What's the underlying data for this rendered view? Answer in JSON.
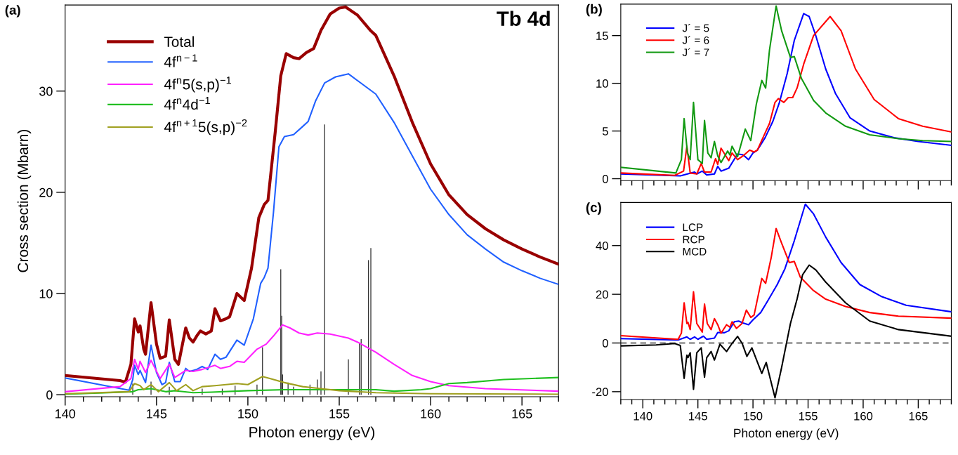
{
  "chart_data": [
    {
      "type": "line",
      "title": "(a)",
      "xlabel": "Photon energy (eV)",
      "ylabel": "Cross section (Mbarn)",
      "annotations": [
        "Tb 4d"
      ],
      "xlim": [
        140,
        167
      ],
      "ylim": [
        -0.2,
        38.5
      ],
      "xticks": [
        140,
        {
          "value": 141,
          "label": null
        },
        {
          "value": 142,
          "label": null
        },
        {
          "value": 143,
          "label": null
        },
        {
          "value": 144,
          "label": null
        },
        145,
        {
          "value": 146,
          "label": null
        },
        {
          "value": 147,
          "label": null
        },
        {
          "value": 148,
          "label": null
        },
        {
          "value": 149,
          "label": null
        },
        150,
        {
          "value": 151,
          "label": null
        },
        {
          "value": 152,
          "label": null
        },
        {
          "value": 153,
          "label": null
        },
        {
          "value": 154,
          "label": null
        },
        155,
        {
          "value": 156,
          "label": null
        },
        {
          "value": 157,
          "label": null
        },
        {
          "value": 158,
          "label": null
        },
        {
          "value": 159,
          "label": null
        },
        160,
        {
          "value": 161,
          "label": null
        },
        {
          "value": 162,
          "label": null
        },
        {
          "value": 163,
          "label": null
        },
        {
          "value": 164,
          "label": null
        },
        165,
        {
          "value": 166,
          "label": null
        },
        {
          "value": 167,
          "label": null
        }
      ],
      "yticks": [
        0,
        10,
        20,
        30
      ],
      "legend": "top left",
      "series": [
        {
          "type": "bar",
          "color": "#333333",
          "x": [
            143.7,
            144.7,
            145.7,
            147.5,
            148.6,
            149.3,
            150.5,
            150.8,
            151.8,
            151.85,
            151.9,
            152.2,
            152.5,
            153.4,
            153.8,
            154.0,
            154.2,
            155.5,
            156.1,
            156.2,
            156.6,
            156.73
          ],
          "values": [
            1.1,
            1.3,
            0.8,
            0.6,
            0.6,
            0.9,
            1.0,
            4.7,
            12.4,
            7.8,
            2.0,
            1.2,
            0.8,
            1.0,
            1.5,
            2.3,
            26.7,
            3.5,
            5.1,
            5.5,
            13.3,
            14.5
          ]
        },
        {
          "name": "Total",
          "color": "#990000",
          "x": [
            140,
            143,
            143.3,
            143.6,
            143.8,
            144.0,
            144.1,
            144.3,
            144.4,
            144.7,
            145.0,
            145.2,
            145.5,
            145.7,
            146.0,
            146.2,
            146.6,
            146.8,
            147.0,
            147.2,
            147.4,
            147.7,
            148.0,
            148.2,
            148.5,
            148.8,
            149.0,
            149.4,
            149.8,
            150.2,
            150.6,
            150.9,
            151.1,
            151.5,
            151.8,
            152.1,
            152.5,
            152.8,
            153.2,
            153.6,
            154.0,
            154.5,
            155.0,
            155.35,
            156.0,
            156.7,
            157,
            158,
            159,
            160,
            161,
            162,
            163,
            164,
            165,
            166,
            167
          ],
          "values": [
            1.9,
            1.4,
            1.25,
            3.0,
            7.5,
            6.2,
            6.8,
            4.5,
            4.0,
            9.1,
            5.0,
            3.6,
            3.8,
            7.4,
            3.5,
            3.0,
            6.6,
            5.6,
            5.2,
            5.8,
            6.3,
            6.0,
            6.3,
            8.5,
            7.3,
            7.5,
            7.7,
            10.0,
            9.3,
            12.5,
            17.5,
            18.8,
            19.2,
            26,
            31.5,
            33.7,
            33.3,
            33.2,
            33.8,
            34.2,
            36.0,
            37.6,
            38.2,
            38.3,
            37.5,
            36.0,
            35.5,
            31.5,
            26.9,
            22.8,
            19.75,
            17.8,
            16.4,
            15.3,
            14.4,
            13.6,
            12.9
          ]
        },
        {
          "name": "4f$^{n−1}$",
          "color": "#2060ff",
          "x": [
            140,
            143.5,
            143.7,
            143.8,
            144.0,
            144.1,
            144.4,
            144.7,
            145.0,
            145.3,
            145.5,
            145.7,
            146.0,
            146.3,
            146.6,
            146.8,
            147.2,
            147.5,
            147.8,
            148.2,
            148.5,
            148.8,
            149.4,
            149.8,
            150.3,
            150.7,
            150.9,
            151.1,
            151.4,
            151.7,
            152.0,
            152.5,
            153.0,
            153.3,
            153.7,
            154.2,
            154.8,
            155.5,
            157,
            158,
            159,
            160,
            161,
            162,
            163,
            164,
            165,
            166,
            167
          ],
          "values": [
            1.65,
            0.45,
            1.5,
            2.9,
            2.0,
            2.4,
            1.2,
            4.9,
            2.2,
            1.0,
            1.2,
            3.2,
            1.3,
            1.3,
            2.6,
            2.3,
            2.5,
            2.8,
            2.5,
            4.0,
            3.5,
            3.7,
            5.4,
            4.9,
            7.5,
            11,
            11.6,
            12.5,
            18,
            24.5,
            25.5,
            25.7,
            26.5,
            27,
            29,
            30.8,
            31.4,
            31.7,
            29.7,
            26.9,
            23.6,
            20.3,
            17.8,
            15.8,
            14.4,
            13.1,
            12.25,
            11.5,
            10.9
          ]
        },
        {
          "name": "4f$^{n}$5(s,p)$^{−1}$",
          "color": "#ff20ff",
          "x": [
            140,
            143,
            143.6,
            143.8,
            144.0,
            144.1,
            144.4,
            144.7,
            145.2,
            145.7,
            146.0,
            146.6,
            147,
            147.5,
            148.2,
            148.5,
            149,
            149.4,
            149.8,
            150.5,
            151,
            151.4,
            151.9,
            152.3,
            152.8,
            153.3,
            153.8,
            154.5,
            155.5,
            156,
            157,
            158,
            159,
            160,
            161,
            163,
            167
          ],
          "values": [
            0.3,
            0.8,
            1.6,
            3.5,
            2.5,
            3.3,
            2.2,
            3.4,
            1.6,
            3.0,
            1.7,
            2.4,
            2.3,
            2.5,
            2.9,
            2.6,
            2.8,
            3.3,
            3.2,
            4.5,
            5.0,
            5.8,
            6.9,
            6.6,
            6.1,
            5.9,
            6.1,
            6.0,
            5.6,
            5.2,
            4.2,
            3.0,
            1.9,
            1.3,
            0.9,
            0.6,
            0.35
          ]
        },
        {
          "name": "4f$^{n}$4d$^{−1}$",
          "color": "#20c020",
          "x": [
            140,
            143.7,
            144,
            144.7,
            145.5,
            146,
            147,
            148,
            150,
            152,
            155,
            157,
            158,
            159.5,
            160,
            161,
            162,
            164,
            167
          ],
          "values": [
            0.05,
            0.3,
            0.5,
            0.6,
            0.3,
            0.4,
            0.2,
            0.25,
            0.4,
            0.5,
            0.5,
            0.5,
            0.35,
            0.5,
            0.6,
            1.1,
            1.2,
            1.5,
            1.7
          ]
        },
        {
          "name": "4f$^{n+1}$5(s,p)$^{−2}$",
          "color": "#a0a020",
          "x": [
            140,
            143.5,
            143.8,
            144.1,
            144.3,
            144.7,
            145.1,
            145.7,
            146.1,
            146.6,
            147.0,
            147.5,
            148.2,
            148.8,
            149.4,
            150.0,
            150.8,
            151.2,
            152,
            153,
            154,
            155,
            157,
            160,
            167
          ],
          "values": [
            0.1,
            0.3,
            1.1,
            0.9,
            0.5,
            1.0,
            0.3,
            1.2,
            0.4,
            1.0,
            0.4,
            0.8,
            0.9,
            1.0,
            1.1,
            1.0,
            1.8,
            1.6,
            1.2,
            0.8,
            0.6,
            0.4,
            0.2,
            0.1,
            0.05
          ]
        }
      ]
    },
    {
      "type": "line",
      "title": "(b)",
      "xlim": [
        138,
        168
      ],
      "ylim": [
        -0.2,
        18.3
      ],
      "tick_labels": "y",
      "xticks": [
        {
          "value": 138,
          "label": null
        },
        {
          "value": 139,
          "label": null
        },
        140,
        {
          "value": 141,
          "label": null
        },
        {
          "value": 142,
          "label": null
        },
        {
          "value": 143,
          "label": null
        },
        {
          "value": 144,
          "label": null
        },
        145,
        {
          "value": 146,
          "label": null
        },
        {
          "value": 147,
          "label": null
        },
        {
          "value": 148,
          "label": null
        },
        {
          "value": 149,
          "label": null
        },
        150,
        {
          "value": 151,
          "label": null
        },
        {
          "value": 152,
          "label": null
        },
        {
          "value": 153,
          "label": null
        },
        {
          "value": 154,
          "label": null
        },
        155,
        {
          "value": 156,
          "label": null
        },
        {
          "value": 157,
          "label": null
        },
        {
          "value": 158,
          "label": null
        },
        {
          "value": 159,
          "label": null
        },
        160,
        {
          "value": 161,
          "label": null
        },
        {
          "value": 162,
          "label": null
        },
        {
          "value": 163,
          "label": null
        },
        {
          "value": 164,
          "label": null
        },
        165,
        {
          "value": 166,
          "label": null
        },
        {
          "value": 167,
          "label": null
        },
        {
          "value": 168,
          "label": null
        }
      ],
      "yticks": [
        0,
        5,
        10,
        15
      ],
      "legend": "top left",
      "series": [
        {
          "name": "J´ = 5",
          "color": "#0000ff",
          "x": [
            138,
            143.4,
            144.7,
            144.9,
            145.4,
            145.8,
            146.5,
            146.8,
            147.1,
            147.8,
            148.6,
            149.1,
            149.6,
            150,
            150.4,
            151.1,
            151.8,
            152.4,
            153.1,
            153.75,
            154.6,
            155.1,
            155.7,
            156.6,
            157.5,
            158.8,
            160.6,
            162.8,
            165,
            168
          ],
          "values": [
            0.5,
            0.3,
            0.7,
            0.5,
            0.8,
            0.4,
            0.5,
            1.3,
            0.8,
            1.1,
            2.6,
            2.5,
            2.0,
            2.7,
            3.0,
            4.3,
            6.0,
            8,
            11,
            14.5,
            17.3,
            17.0,
            15.0,
            11.5,
            8.9,
            6.4,
            5.0,
            4.3,
            3.9,
            3.5
          ]
        },
        {
          "name": "J´ = 6",
          "color": "#ff0000",
          "x": [
            138,
            142.9,
            143.7,
            144.0,
            144.3,
            144.9,
            145.3,
            145.6,
            146.2,
            146.6,
            146.8,
            147.1,
            147.8,
            148.1,
            148.6,
            149.1,
            149.7,
            150.1,
            150.4,
            151.1,
            151.5,
            152,
            152.3,
            152.8,
            153.2,
            153.6,
            154,
            154.6,
            155.5,
            157,
            158,
            159.3,
            161,
            163.2,
            165.4,
            168
          ],
          "values": [
            0.6,
            0.35,
            0.8,
            3.4,
            0.6,
            0.5,
            1.6,
            0.7,
            0.7,
            2.1,
            1.5,
            3.2,
            1.9,
            2.7,
            2.0,
            2.4,
            3.0,
            2.8,
            3.0,
            4.8,
            5.8,
            8.0,
            8.4,
            8.0,
            8.5,
            8.5,
            9.5,
            12,
            15,
            17.0,
            15.5,
            11.5,
            8.3,
            6.3,
            5.5,
            4.9
          ]
        },
        {
          "name": "J´ = 7",
          "color": "#119911",
          "x": [
            138,
            143,
            143.5,
            143.75,
            144.05,
            144.3,
            144.6,
            145.0,
            145.4,
            145.6,
            145.9,
            146.2,
            146.5,
            146.8,
            147.1,
            147.7,
            147.9,
            148.1,
            148.6,
            149.3,
            149.8,
            150.3,
            150.8,
            151.15,
            151.5,
            152.1,
            152.6,
            153.4,
            153.75,
            154.4,
            155.5,
            156.6,
            158.4,
            160.6,
            163.2,
            165.4,
            168
          ],
          "values": [
            1.2,
            0.6,
            2,
            6.3,
            2.7,
            2.0,
            8.0,
            2.0,
            1.6,
            6.1,
            2.7,
            2.2,
            3.9,
            2.4,
            1.7,
            2.9,
            2.5,
            3.4,
            2.3,
            5.2,
            4.0,
            7.8,
            10.3,
            9.5,
            13.5,
            18.1,
            15.5,
            12.7,
            12.8,
            10.5,
            8.2,
            6.9,
            5.5,
            4.6,
            4.2,
            4.0,
            3.9
          ]
        }
      ]
    },
    {
      "type": "line",
      "title": "(c)",
      "xlabel": "Photon energy (eV)",
      "xlim": [
        138,
        168
      ],
      "ylim": [
        -23.2,
        57.7
      ],
      "xticks": [
        {
          "value": 138,
          "label": null
        },
        {
          "value": 139,
          "label": null
        },
        140,
        {
          "value": 141,
          "label": null
        },
        {
          "value": 142,
          "label": null
        },
        {
          "value": 143,
          "label": null
        },
        {
          "value": 144,
          "label": null
        },
        145,
        {
          "value": 146,
          "label": null
        },
        {
          "value": 147,
          "label": null
        },
        {
          "value": 148,
          "label": null
        },
        {
          "value": 149,
          "label": null
        },
        150,
        {
          "value": 151,
          "label": null
        },
        {
          "value": 152,
          "label": null
        },
        {
          "value": 153,
          "label": null
        },
        {
          "value": 154,
          "label": null
        },
        155,
        {
          "value": 156,
          "label": null
        },
        {
          "value": 157,
          "label": null
        },
        {
          "value": 158,
          "label": null
        },
        {
          "value": 159,
          "label": null
        },
        160,
        {
          "value": 161,
          "label": null
        },
        {
          "value": 162,
          "label": null
        },
        {
          "value": 163,
          "label": null
        },
        {
          "value": 164,
          "label": null
        },
        165,
        {
          "value": 166,
          "label": null
        },
        {
          "value": 167,
          "label": null
        },
        {
          "value": 168,
          "label": null
        }
      ],
      "yticks": [
        -20,
        0,
        20,
        40
      ],
      "legend": "top left",
      "ref_lines": [
        {
          "axis": "y",
          "value": 0,
          "color": "#333333",
          "line_style": "dashed"
        }
      ],
      "series": [
        {
          "name": "LCP",
          "color": "#0000ff",
          "x": [
            138,
            143.2,
            144,
            144.3,
            144.7,
            145.0,
            145.5,
            145.8,
            146.5,
            146.8,
            147.4,
            147.8,
            148.3,
            148.7,
            149.1,
            149.6,
            150,
            150.7,
            151.3,
            152.2,
            152.9,
            153.75,
            154.75,
            155.5,
            156.6,
            158,
            159.7,
            161.7,
            163.9,
            168
          ],
          "values": [
            1.8,
            1.2,
            2.5,
            1.5,
            2.5,
            1.5,
            2.8,
            1.5,
            2,
            4.3,
            4.2,
            5,
            8.7,
            9.0,
            8.2,
            7.5,
            9.5,
            12.5,
            17,
            24,
            30.5,
            42,
            57,
            53,
            43.5,
            33,
            24,
            19,
            15.5,
            12.8
          ]
        },
        {
          "name": "RCP",
          "color": "#ff0000",
          "x": [
            138,
            143.2,
            143.5,
            143.75,
            144,
            144.1,
            144.3,
            144.6,
            144.9,
            145.4,
            145.6,
            145.85,
            146.2,
            146.5,
            146.8,
            147.1,
            147.6,
            147.9,
            148.1,
            148.5,
            149,
            149.4,
            149.8,
            150.1,
            150.8,
            151.15,
            151.65,
            152.1,
            152.6,
            153.3,
            153.75,
            154.3,
            155.5,
            156.6,
            158.4,
            160.6,
            163.2,
            168
          ],
          "values": [
            3.0,
            1.5,
            4,
            16.5,
            8,
            8.5,
            5.5,
            21,
            8,
            4.5,
            16,
            8,
            5.5,
            10,
            7.5,
            4,
            7.5,
            6.5,
            8.7,
            6.0,
            8,
            13.5,
            10.5,
            11.5,
            26.5,
            24.5,
            35,
            47,
            41,
            33,
            33.5,
            27,
            21.5,
            18,
            15,
            12.5,
            11,
            10.2
          ]
        },
        {
          "name": "MCD",
          "color": "#000000",
          "x": [
            138,
            141.2,
            142.9,
            143.4,
            143.75,
            144,
            144.1,
            144.3,
            144.6,
            144.9,
            145.3,
            145.6,
            145.8,
            146.2,
            146.5,
            147,
            147.6,
            148.05,
            148.6,
            149,
            149.45,
            149.9,
            150.8,
            151.2,
            152,
            152.6,
            153.4,
            154,
            154.5,
            155.1,
            155.7,
            156.6,
            158.4,
            160.6,
            163.2,
            168
          ],
          "values": [
            -1.2,
            -0.8,
            -0.2,
            -1,
            -14.5,
            -5,
            -6,
            -4,
            -19,
            -4,
            -2,
            -14,
            -6,
            -3.5,
            -7,
            -0.5,
            -3.5,
            -0.5,
            2.7,
            0,
            -5.5,
            -2,
            -12.5,
            -8,
            -22.5,
            -10,
            8,
            18,
            28,
            32,
            30,
            25,
            16.5,
            9,
            5.5,
            2.8
          ]
        }
      ]
    }
  ]
}
